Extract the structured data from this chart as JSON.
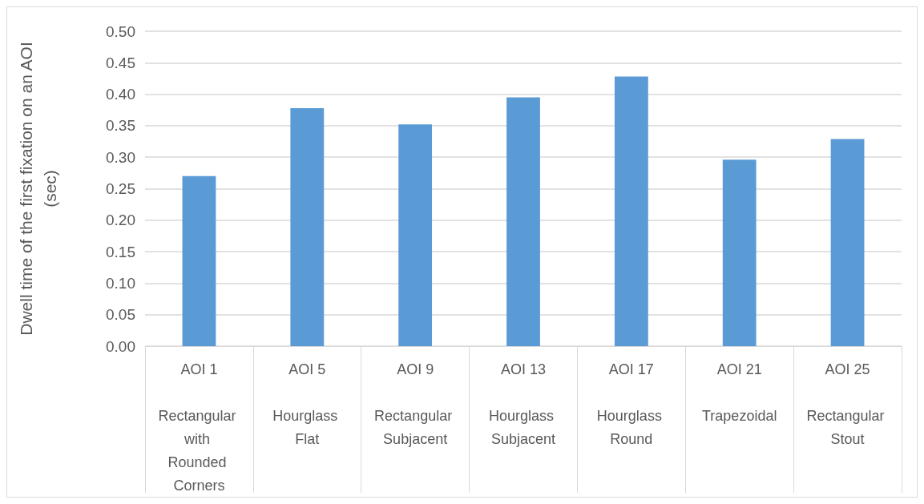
{
  "chart_data": {
    "type": "bar",
    "ylabel": "Dwell time of the first fixation on an AOI\n(sec)",
    "categories": [
      "AOI 1\nRectangular with Rounded Corners",
      "AOI 5\nHourglass Flat",
      "AOI 9\nRectangular Subjacent",
      "AOI 13\nHourglass Subjacent",
      "AOI 17\nHourglass Round",
      "AOI 21\nTrapezoidal",
      "AOI 25\nRectangular Stout"
    ],
    "values": [
      0.27,
      0.378,
      0.352,
      0.395,
      0.428,
      0.296,
      0.329
    ],
    "color": "#5b9bd5",
    "ylim": [
      0,
      0.5
    ],
    "yticks": [
      {
        "value": 0,
        "label": "0.00"
      },
      0.05,
      {
        "value": 0.1,
        "label": "0.10"
      },
      0.15,
      {
        "value": 0.2,
        "label": "0.20"
      },
      0.25,
      {
        "value": 0.3,
        "label": "0.30"
      },
      0.35,
      {
        "value": 0.4,
        "label": "0.40"
      },
      0.45,
      {
        "value": 0.5,
        "label": "0.50"
      }
    ],
    "grid": "y"
  }
}
